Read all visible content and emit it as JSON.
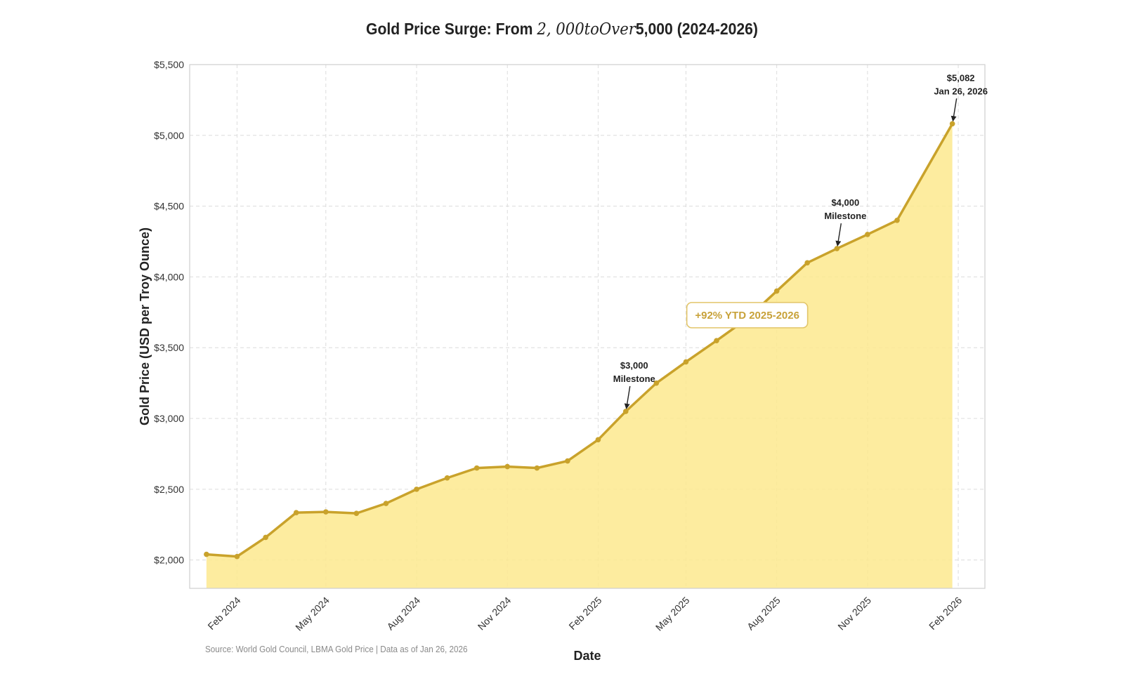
{
  "title": {
    "prefix": "Gold Price Surge: From ",
    "math": "2, 000toOver",
    "suffix": "5,000 (2024-2026)"
  },
  "source_note": "Source: World Gold Council, LBMA Gold Price | Data as of Jan 26, 2026",
  "colors": {
    "line": "#c9a22b",
    "fill": "#fde98e",
    "grid": "#dcdcdc",
    "annotation_box_border": "#e2c56a",
    "annotation_text": "#c8a23a"
  },
  "chart_data": {
    "type": "area",
    "title": "Gold Price Surge: From 2, 000toOver5,000 (2024-2026)",
    "xlabel": "Date",
    "ylabel": "Gold Price (USD per Troy Ounce)",
    "ylim": [
      1800,
      5500
    ],
    "xlim": [
      "2023-12-15",
      "2026-02-28"
    ],
    "grid": true,
    "y_ticks": [
      {
        "value": 2000,
        "label": "$2,000"
      },
      {
        "value": 2500,
        "label": "$2,500"
      },
      {
        "value": 3000,
        "label": "$3,000"
      },
      {
        "value": 3500,
        "label": "$3,500"
      },
      {
        "value": 4000,
        "label": "$4,000"
      },
      {
        "value": 4500,
        "label": "$4,500"
      },
      {
        "value": 5000,
        "label": "$5,000"
      },
      {
        "value": 5500,
        "label": "$5,500"
      }
    ],
    "x_ticks": [
      {
        "date": "2024-02-01",
        "label": "Feb 2024"
      },
      {
        "date": "2024-05-01",
        "label": "May 2024"
      },
      {
        "date": "2024-08-01",
        "label": "Aug 2024"
      },
      {
        "date": "2024-11-01",
        "label": "Nov 2024"
      },
      {
        "date": "2025-02-01",
        "label": "Feb 2025"
      },
      {
        "date": "2025-05-01",
        "label": "May 2025"
      },
      {
        "date": "2025-08-01",
        "label": "Aug 2025"
      },
      {
        "date": "2025-11-01",
        "label": "Nov 2025"
      },
      {
        "date": "2026-02-01",
        "label": "Feb 2026"
      }
    ],
    "series": [
      {
        "points": [
          {
            "x": "2024-01-01",
            "y": 2040
          },
          {
            "x": "2024-02-01",
            "y": 2025
          },
          {
            "x": "2024-03-01",
            "y": 2160
          },
          {
            "x": "2024-04-01",
            "y": 2335
          },
          {
            "x": "2024-05-01",
            "y": 2340
          },
          {
            "x": "2024-06-01",
            "y": 2330
          },
          {
            "x": "2024-07-01",
            "y": 2400
          },
          {
            "x": "2024-08-01",
            "y": 2500
          },
          {
            "x": "2024-09-01",
            "y": 2580
          },
          {
            "x": "2024-10-01",
            "y": 2650
          },
          {
            "x": "2024-11-01",
            "y": 2660
          },
          {
            "x": "2024-12-01",
            "y": 2650
          },
          {
            "x": "2025-01-01",
            "y": 2700
          },
          {
            "x": "2025-02-01",
            "y": 2850
          },
          {
            "x": "2025-03-01",
            "y": 3050
          },
          {
            "x": "2025-04-01",
            "y": 3250
          },
          {
            "x": "2025-05-01",
            "y": 3400
          },
          {
            "x": "2025-06-01",
            "y": 3550
          },
          {
            "x": "2025-07-01",
            "y": 3700
          },
          {
            "x": "2025-08-01",
            "y": 3900
          },
          {
            "x": "2025-09-01",
            "y": 4100
          },
          {
            "x": "2025-10-01",
            "y": 4200
          },
          {
            "x": "2025-11-01",
            "y": 4300
          },
          {
            "x": "2025-12-01",
            "y": 4400
          },
          {
            "x": "2026-01-26",
            "y": 5082
          }
        ]
      }
    ],
    "annotations": [
      {
        "lines": [
          "$5,082",
          "Jan 26, 2026"
        ],
        "x": "2026-01-26",
        "y": 5082
      },
      {
        "lines": [
          "$4,000",
          "Milestone"
        ],
        "x": "2025-10-01",
        "y": 4200
      },
      {
        "lines": [
          "$3,000",
          "Milestone"
        ],
        "x": "2025-03-01",
        "y": 3050
      }
    ],
    "callout": {
      "text": "+92% YTD 2025-2026",
      "x": "2025-08-01",
      "y": 3730
    }
  }
}
